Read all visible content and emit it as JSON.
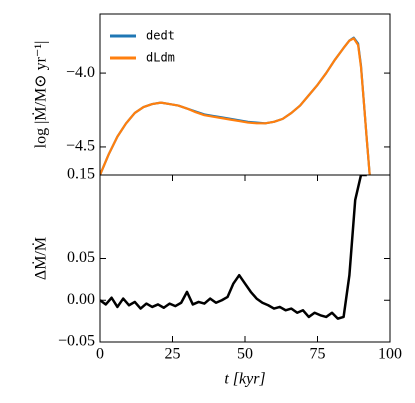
{
  "chart_data": [
    {
      "type": "line",
      "ylabel": "log |Ṁ/M⊙ yr⁻¹|",
      "legend": "upper left",
      "x": [
        0,
        3,
        6,
        9,
        12,
        15,
        18,
        21,
        24,
        27,
        30,
        33,
        36,
        39,
        42,
        45,
        48,
        51,
        54,
        57,
        60,
        63,
        66,
        69,
        72,
        75,
        78,
        81,
        84,
        86,
        87.5,
        89,
        90,
        91,
        92,
        93
      ],
      "series": [
        {
          "name": "dedt",
          "color": "#1f77b4",
          "values": [
            -4.69,
            -4.55,
            -4.43,
            -4.34,
            -4.27,
            -4.23,
            -4.21,
            -4.2,
            -4.21,
            -4.22,
            -4.24,
            -4.26,
            -4.28,
            -4.29,
            -4.3,
            -4.31,
            -4.32,
            -4.33,
            -4.335,
            -4.34,
            -4.33,
            -4.31,
            -4.27,
            -4.22,
            -4.15,
            -4.08,
            -4.0,
            -3.91,
            -3.83,
            -3.78,
            -3.76,
            -3.8,
            -3.95,
            -4.2,
            -4.45,
            -4.69
          ]
        },
        {
          "name": "dLdm",
          "color": "#ff7f0e",
          "values": [
            -4.69,
            -4.55,
            -4.43,
            -4.34,
            -4.27,
            -4.23,
            -4.21,
            -4.2,
            -4.21,
            -4.22,
            -4.24,
            -4.265,
            -4.285,
            -4.295,
            -4.305,
            -4.315,
            -4.325,
            -4.335,
            -4.34,
            -4.34,
            -4.33,
            -4.31,
            -4.27,
            -4.22,
            -4.15,
            -4.08,
            -4.0,
            -3.91,
            -3.83,
            -3.78,
            -3.765,
            -3.81,
            -3.96,
            -4.2,
            -4.45,
            -4.69
          ]
        }
      ],
      "xlim": [
        0,
        100
      ],
      "ylim": [
        -4.69,
        -3.6
      ],
      "yticks": [
        {
          "value": -4.5,
          "label": "−4.5"
        },
        {
          "value": -4.0,
          "label": "−4.0"
        }
      ]
    },
    {
      "type": "line",
      "ylabel": "ΔṀ/Ṁ",
      "xlabel": "t [kyr]",
      "x": [
        0,
        2,
        4,
        6,
        8,
        10,
        12,
        14,
        16,
        18,
        20,
        22,
        24,
        26,
        28,
        30,
        32,
        34,
        36,
        38,
        40,
        42,
        44,
        46,
        48,
        50,
        52,
        54,
        56,
        58,
        60,
        62,
        64,
        66,
        68,
        70,
        72,
        74,
        76,
        78,
        80,
        82,
        84,
        86,
        88,
        90,
        92
      ],
      "series": [
        {
          "name": null,
          "color": "#000000",
          "values": [
            0.0,
            -0.005,
            0.003,
            -0.008,
            0.002,
            -0.006,
            -0.002,
            -0.01,
            -0.004,
            -0.008,
            -0.005,
            -0.009,
            -0.004,
            -0.007,
            -0.003,
            0.01,
            -0.005,
            -0.002,
            -0.004,
            0.002,
            -0.003,
            0.0,
            0.004,
            0.02,
            0.03,
            0.02,
            0.01,
            0.002,
            -0.003,
            -0.006,
            -0.01,
            -0.008,
            -0.012,
            -0.01,
            -0.015,
            -0.012,
            -0.02,
            -0.015,
            -0.018,
            -0.02,
            -0.015,
            -0.022,
            -0.02,
            0.03,
            0.12,
            0.15,
            0.15
          ]
        }
      ],
      "xlim": [
        0,
        100
      ],
      "xticks": [
        0,
        25,
        50,
        75,
        100
      ],
      "ylim": [
        -0.05,
        0.15
      ],
      "yticks": [
        {
          "value": -0.05,
          "label": "−0.05"
        },
        {
          "value": 0,
          "label": "0.00"
        },
        0.05,
        0.15
      ]
    }
  ]
}
